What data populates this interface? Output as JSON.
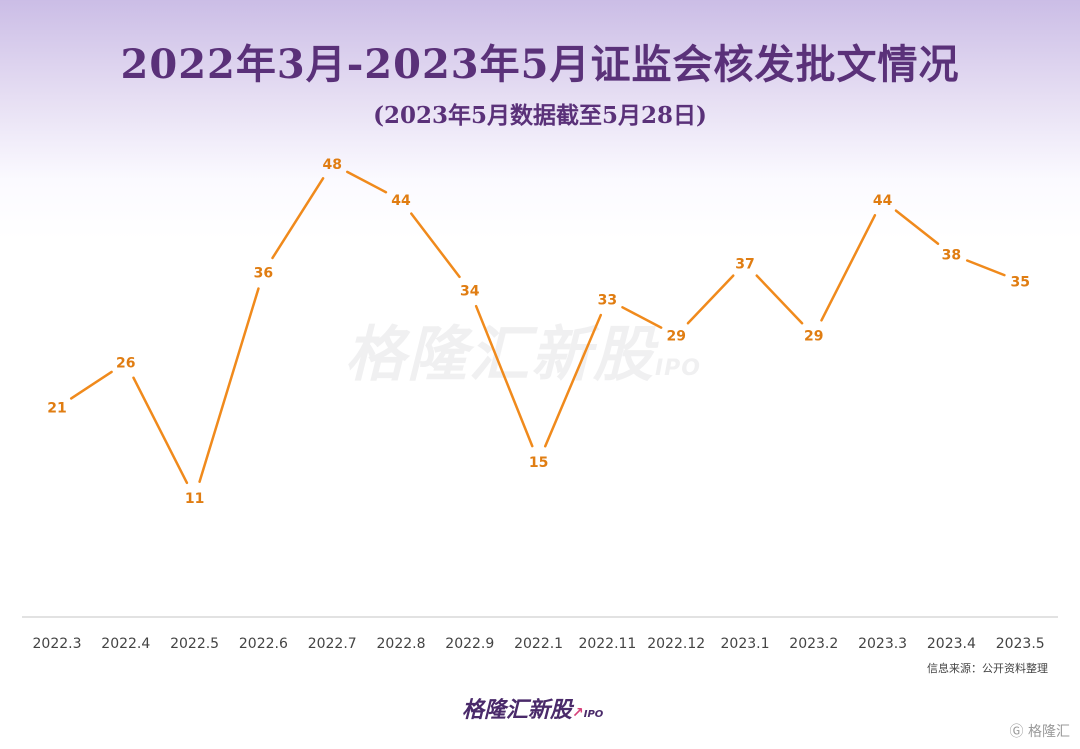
{
  "title": "2022年3月-2023年5月证监会核发批文情况",
  "subtitle": "(2023年5月数据截至5月28日)",
  "source": "信息来源：公开资料整理",
  "watermark": {
    "text": "格隆汇新股",
    "ipo": "IPO"
  },
  "logo": {
    "text": "格隆汇新股",
    "ipo": "IPO"
  },
  "corner_badge": "格隆汇",
  "colors": {
    "line": "#f08a1c",
    "label": "#e07d12",
    "title": "#5a3179",
    "axis": "#d8d8d8",
    "tick": "#444444"
  },
  "chart_data": {
    "type": "line",
    "categories": [
      "2022.3",
      "2022.4",
      "2022.5",
      "2022.6",
      "2022.7",
      "2022.8",
      "2022.9",
      "2022.1",
      "2022.11",
      "2022.12",
      "2023.1",
      "2023.2",
      "2023.3",
      "2023.4",
      "2023.5"
    ],
    "series": [
      {
        "values": [
          21,
          26,
          11,
          36,
          48,
          44,
          34,
          15,
          33,
          29,
          37,
          29,
          44,
          38,
          35
        ]
      }
    ],
    "title": "2022年3月-2023年5月证监会核发批文情况",
    "subtitle": "(2023年5月数据截至5月28日)",
    "xlabel": "",
    "ylabel": "",
    "data_labels": true,
    "grid": false
  }
}
